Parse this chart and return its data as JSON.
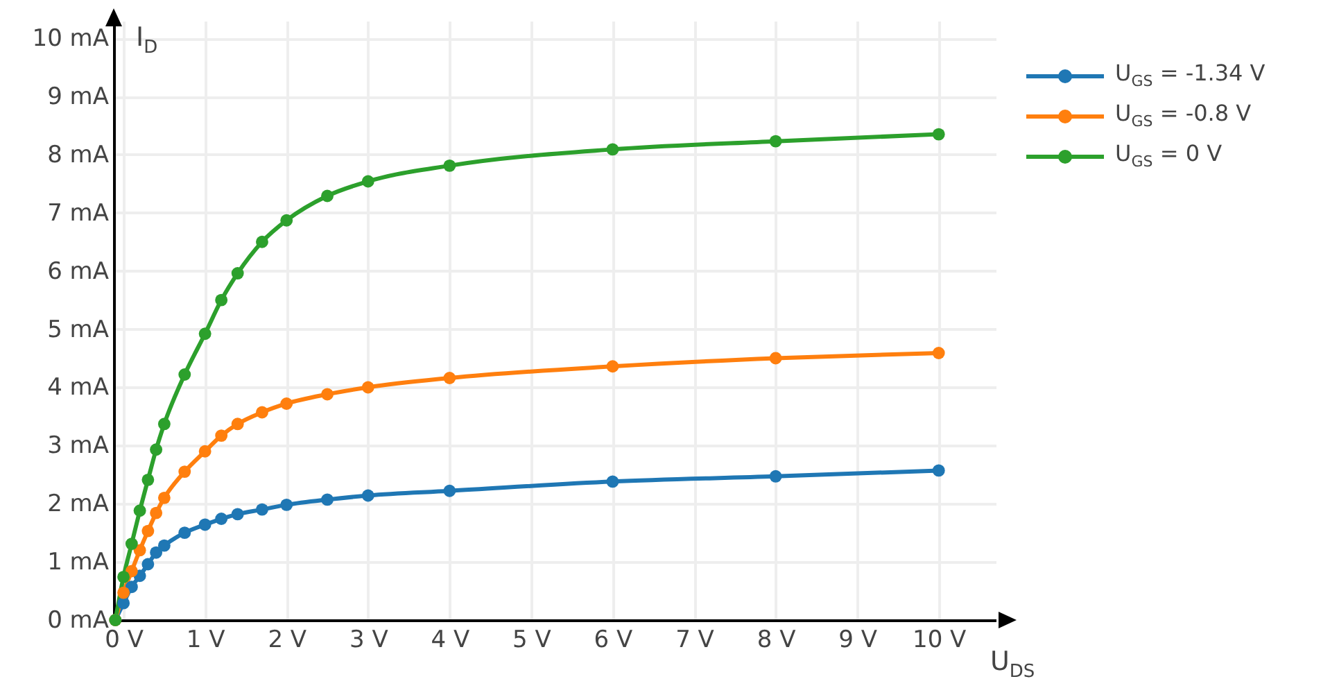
{
  "chart_data": {
    "type": "line",
    "xlabel": "U$_{DS}$",
    "ylabel": "I$_{D}$",
    "x": [
      -0.1,
      0,
      0.1,
      0.2,
      0.3,
      0.4,
      0.5,
      0.75,
      1,
      1.2,
      1.4,
      1.7,
      2,
      2.5,
      3,
      4,
      6,
      8,
      10
    ],
    "series": [
      {
        "name": "U$_{GS}$ = -1.34 V",
        "color": "#1f77b4",
        "values": [
          0,
          0.29,
          0.57,
          0.76,
          0.96,
          1.16,
          1.28,
          1.5,
          1.64,
          1.74,
          1.82,
          1.9,
          1.98,
          2.07,
          2.14,
          2.22,
          2.38,
          2.47,
          2.57
        ]
      },
      {
        "name": "U$_{GS}$ = -0.8 V",
        "color": "#ff7f0e",
        "values": [
          0,
          0.47,
          0.84,
          1.2,
          1.53,
          1.84,
          2.1,
          2.55,
          2.9,
          3.17,
          3.37,
          3.57,
          3.72,
          3.88,
          4.0,
          4.16,
          4.36,
          4.5,
          4.59
        ]
      },
      {
        "name": "U$_{GS}$ = 0 V",
        "color": "#2ca02c",
        "values": [
          0,
          0.74,
          1.31,
          1.88,
          2.41,
          2.93,
          3.37,
          4.22,
          4.92,
          5.5,
          5.96,
          6.5,
          6.87,
          7.29,
          7.54,
          7.81,
          8.09,
          8.23,
          8.35
        ]
      }
    ],
    "xlim": [
      -0.12,
      10.7
    ],
    "ylim": [
      0,
      10.3
    ],
    "xticks": [
      {
        "value": 0,
        "label": "0 V"
      },
      {
        "value": 1,
        "label": "1 V"
      },
      {
        "value": 2,
        "label": "2 V"
      },
      {
        "value": 3,
        "label": "3 V"
      },
      {
        "value": 4,
        "label": "4 V"
      },
      {
        "value": 5,
        "label": "5 V"
      },
      {
        "value": 6,
        "label": "6 V"
      },
      {
        "value": 7,
        "label": "7 V"
      },
      {
        "value": 8,
        "label": "8 V"
      },
      {
        "value": 9,
        "label": "9 V"
      },
      {
        "value": 10,
        "label": "10 V"
      }
    ],
    "yticks": [
      {
        "value": 0,
        "label": "0 mA"
      },
      {
        "value": 1,
        "label": "1 mA"
      },
      {
        "value": 2,
        "label": "2 mA"
      },
      {
        "value": 3,
        "label": "3 mA"
      },
      {
        "value": 4,
        "label": "4 mA"
      },
      {
        "value": 5,
        "label": "5 mA"
      },
      {
        "value": 6,
        "label": "6 mA"
      },
      {
        "value": 7,
        "label": "7 mA"
      },
      {
        "value": 8,
        "label": "8 mA"
      },
      {
        "value": 9,
        "label": "9 mA"
      },
      {
        "value": 10,
        "label": "10 mA"
      }
    ],
    "grid": true,
    "legend": "top right",
    "marker": "circle",
    "line_style": "solid"
  }
}
